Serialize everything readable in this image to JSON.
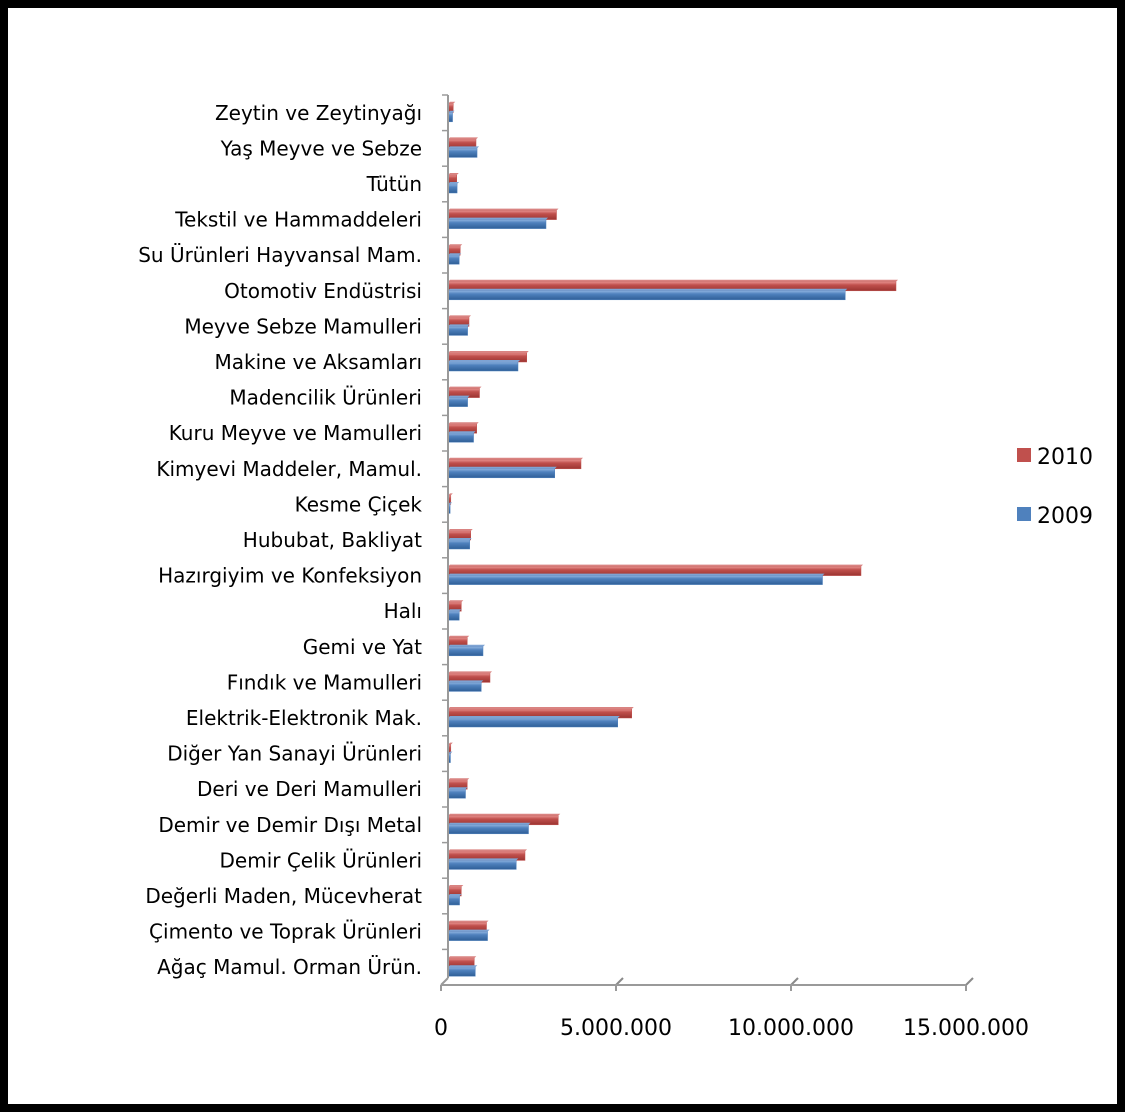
{
  "chart_data": {
    "type": "bar",
    "orientation": "horizontal",
    "categories": [
      "Zeytin ve Zeytinyağı",
      "Yaş Meyve ve Sebze",
      "Tütün",
      "Tekstil ve Hammaddeleri",
      "Su Ürünleri Hayvansal Mam.",
      "Otomotiv Endüstrisi",
      "Meyve Sebze Mamulleri",
      "Makine ve Aksamları",
      "Madencilik Ürünleri",
      "Kuru Meyve ve Mamulleri",
      "Kimyevi Maddeler, Mamul.",
      "Kesme Çiçek",
      "Hububat, Bakliyat",
      "Hazırgiyim ve Konfeksiyon",
      "Halı",
      "Gemi ve Yat",
      "Fındık ve Mamulleri",
      "Elektrik-Elektronik Mak.",
      "Diğer Yan Sanayi Ürünleri",
      "Deri ve Deri Mamulleri",
      "Demir ve Demir Dışı Metal",
      "Demir Çelik Ürünleri",
      "Değerli Maden, Mücevherat",
      "Çimento ve Toprak Ürünleri",
      "Ağaç Mamul. Orman Ürün."
    ],
    "series": [
      {
        "name": "2010",
        "color": "#c0504d",
        "values": [
          150000,
          800000,
          250000,
          3100000,
          350000,
          12800000,
          600000,
          2250000,
          900000,
          820000,
          3800000,
          80000,
          650000,
          11800000,
          380000,
          550000,
          1200000,
          5250000,
          80000,
          550000,
          3150000,
          2200000,
          380000,
          1100000,
          750000
        ]
      },
      {
        "name": "2009",
        "color": "#4f81bd",
        "values": [
          130000,
          830000,
          260000,
          2800000,
          320000,
          11350000,
          560000,
          2000000,
          560000,
          730000,
          3050000,
          60000,
          620000,
          10700000,
          320000,
          1000000,
          950000,
          4850000,
          70000,
          500000,
          2300000,
          1950000,
          330000,
          1130000,
          780000
        ]
      }
    ],
    "xlim": [
      0,
      15000000
    ],
    "xticks": [
      0,
      5000000,
      10000000,
      15000000
    ],
    "xtick_labels": [
      "0",
      "5.000.000",
      "10.000.000",
      "15.000.000"
    ],
    "grid": true,
    "legend_position": "right",
    "legend": [
      {
        "label": "2010",
        "color": "#c0504d"
      },
      {
        "label": "2009",
        "color": "#4f81bd"
      }
    ]
  }
}
